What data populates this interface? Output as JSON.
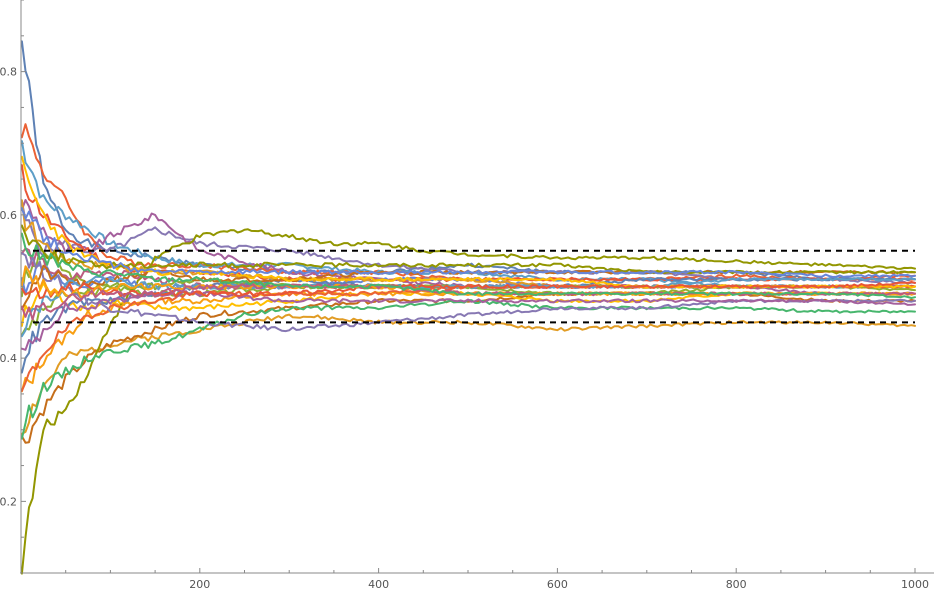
{
  "chart_data": {
    "type": "line",
    "title": "",
    "xlabel": "",
    "ylabel": "",
    "xlim": [
      0,
      1000
    ],
    "ylim": [
      0.1,
      0.9
    ],
    "grid": false,
    "legend": "none",
    "x_ticks": [
      {
        "value": 200,
        "label": "200"
      },
      {
        "value": 400,
        "label": "400"
      },
      {
        "value": 600,
        "label": "600"
      },
      {
        "value": 800,
        "label": "800"
      },
      {
        "value": 1000,
        "label": "1000"
      }
    ],
    "y_ticks": [
      {
        "value": 0.2,
        "label": "0.2"
      },
      {
        "value": 0.4,
        "label": "0.4"
      },
      {
        "value": 0.6,
        "label": "0.6"
      },
      {
        "value": 0.8,
        "label": "0.8"
      }
    ],
    "reference_lines": [
      {
        "y": 0.55,
        "color": "#000000",
        "style": "dashed"
      },
      {
        "y": 0.45,
        "color": "#000000",
        "style": "dashed"
      }
    ],
    "palette": [
      "#5E81B5",
      "#E19C24",
      "#8FB032",
      "#EB6235",
      "#8778B3",
      "#C56E1A",
      "#5D9EC7",
      "#FFBF00",
      "#A5609D",
      "#929600",
      "#E95536",
      "#6685D9",
      "#F89F13",
      "#BC5B80",
      "#47B66D"
    ],
    "series": [
      {
        "color": "#5E81B5",
        "x": [
          1,
          25,
          50,
          75,
          100,
          150,
          200,
          300,
          400,
          500,
          600,
          700,
          800,
          900,
          1000
        ],
        "y": [
          0.84,
          0.64,
          0.58,
          0.56,
          0.55,
          0.54,
          0.53,
          0.52,
          0.52,
          0.53,
          0.52,
          0.52,
          0.52,
          0.51,
          0.51
        ]
      },
      {
        "color": "#E19C24",
        "x": [
          1,
          25,
          50,
          75,
          100,
          150,
          200,
          300,
          400,
          500,
          600,
          700,
          800,
          900,
          1000
        ],
        "y": [
          0.3,
          0.36,
          0.4,
          0.41,
          0.42,
          0.43,
          0.44,
          0.46,
          0.45,
          0.45,
          0.44,
          0.445,
          0.45,
          0.45,
          0.445
        ]
      },
      {
        "color": "#8FB032",
        "x": [
          1,
          25,
          50,
          75,
          100,
          150,
          200,
          300,
          400,
          500,
          600,
          700,
          800,
          900,
          1000
        ],
        "y": [
          0.5,
          0.55,
          0.52,
          0.5,
          0.5,
          0.49,
          0.49,
          0.5,
          0.5,
          0.5,
          0.49,
          0.49,
          0.5,
          0.5,
          0.5
        ]
      },
      {
        "color": "#EB6235",
        "x": [
          1,
          25,
          50,
          75,
          100,
          150,
          200,
          300,
          400,
          500,
          600,
          700,
          800,
          900,
          1000
        ],
        "y": [
          0.73,
          0.66,
          0.62,
          0.57,
          0.54,
          0.53,
          0.53,
          0.52,
          0.52,
          0.51,
          0.51,
          0.51,
          0.515,
          0.51,
          0.51
        ]
      },
      {
        "color": "#8778B3",
        "x": [
          1,
          25,
          50,
          75,
          100,
          150,
          200,
          300,
          400,
          500,
          600,
          700,
          800,
          900,
          1000
        ],
        "y": [
          0.6,
          0.55,
          0.56,
          0.55,
          0.55,
          0.58,
          0.56,
          0.55,
          0.53,
          0.52,
          0.52,
          0.52,
          0.51,
          0.51,
          0.505
        ]
      },
      {
        "color": "#C56E1A",
        "x": [
          1,
          25,
          50,
          75,
          100,
          150,
          200,
          300,
          400,
          500,
          600,
          700,
          800,
          900,
          1000
        ],
        "y": [
          0.28,
          0.33,
          0.37,
          0.4,
          0.42,
          0.44,
          0.46,
          0.47,
          0.48,
          0.48,
          0.49,
          0.49,
          0.49,
          0.48,
          0.48
        ]
      },
      {
        "color": "#5D9EC7",
        "x": [
          1,
          25,
          50,
          75,
          100,
          150,
          200,
          300,
          400,
          500,
          600,
          700,
          800,
          900,
          1000
        ],
        "y": [
          0.7,
          0.62,
          0.6,
          0.58,
          0.56,
          0.54,
          0.53,
          0.53,
          0.52,
          0.52,
          0.51,
          0.51,
          0.5,
          0.5,
          0.5
        ]
      },
      {
        "color": "#FFBF00",
        "x": [
          1,
          25,
          50,
          75,
          100,
          150,
          200,
          300,
          400,
          500,
          600,
          700,
          800,
          900,
          1000
        ],
        "y": [
          0.45,
          0.5,
          0.48,
          0.47,
          0.48,
          0.47,
          0.47,
          0.48,
          0.49,
          0.49,
          0.48,
          0.48,
          0.49,
          0.49,
          0.49
        ]
      },
      {
        "color": "#A5609D",
        "x": [
          1,
          25,
          50,
          75,
          100,
          150,
          200,
          300,
          400,
          500,
          600,
          700,
          800,
          900,
          1000
        ],
        "y": [
          0.62,
          0.58,
          0.55,
          0.55,
          0.57,
          0.6,
          0.55,
          0.52,
          0.51,
          0.5,
          0.5,
          0.5,
          0.5,
          0.49,
          0.49
        ]
      },
      {
        "color": "#929600",
        "x": [
          1,
          25,
          50,
          75,
          100,
          150,
          200,
          250,
          300,
          350,
          400,
          450,
          500,
          600,
          700,
          800,
          900,
          1000
        ],
        "y": [
          0.12,
          0.3,
          0.33,
          0.38,
          0.45,
          0.54,
          0.57,
          0.58,
          0.57,
          0.56,
          0.56,
          0.55,
          0.545,
          0.54,
          0.54,
          0.535,
          0.53,
          0.525
        ]
      },
      {
        "color": "#E95536",
        "x": [
          1,
          25,
          50,
          75,
          100,
          150,
          200,
          300,
          400,
          500,
          600,
          700,
          800,
          900,
          1000
        ],
        "y": [
          0.65,
          0.6,
          0.57,
          0.55,
          0.53,
          0.52,
          0.52,
          0.51,
          0.51,
          0.51,
          0.51,
          0.51,
          0.51,
          0.51,
          0.515
        ]
      },
      {
        "color": "#6685D9",
        "x": [
          1,
          25,
          50,
          75,
          100,
          150,
          200,
          300,
          400,
          500,
          600,
          700,
          800,
          900,
          1000
        ],
        "y": [
          0.5,
          0.53,
          0.5,
          0.5,
          0.51,
          0.5,
          0.5,
          0.5,
          0.51,
          0.51,
          0.5,
          0.5,
          0.5,
          0.5,
          0.5
        ]
      },
      {
        "color": "#F89F13",
        "x": [
          1,
          25,
          50,
          75,
          100,
          150,
          200,
          300,
          400,
          500,
          600,
          700,
          800,
          900,
          1000
        ],
        "y": [
          0.35,
          0.4,
          0.43,
          0.46,
          0.47,
          0.48,
          0.48,
          0.49,
          0.49,
          0.49,
          0.49,
          0.49,
          0.49,
          0.49,
          0.49
        ]
      },
      {
        "color": "#BC5B80",
        "x": [
          1,
          25,
          50,
          75,
          100,
          150,
          200,
          300,
          400,
          500,
          600,
          700,
          800,
          900,
          1000
        ],
        "y": [
          0.55,
          0.53,
          0.51,
          0.52,
          0.52,
          0.51,
          0.5,
          0.5,
          0.5,
          0.5,
          0.5,
          0.5,
          0.5,
          0.5,
          0.5
        ]
      },
      {
        "color": "#47B66D",
        "x": [
          1,
          25,
          50,
          75,
          100,
          150,
          200,
          250,
          300,
          400,
          500,
          600,
          700,
          800,
          900,
          1000
        ],
        "y": [
          0.3,
          0.36,
          0.38,
          0.4,
          0.41,
          0.42,
          0.44,
          0.46,
          0.47,
          0.47,
          0.48,
          0.47,
          0.47,
          0.47,
          0.465,
          0.465
        ]
      },
      {
        "color": "#5E81B5",
        "x": [
          1,
          25,
          50,
          75,
          100,
          150,
          200,
          300,
          400,
          500,
          600,
          700,
          800,
          900,
          1000
        ],
        "y": [
          0.4,
          0.45,
          0.47,
          0.48,
          0.48,
          0.49,
          0.5,
          0.51,
          0.5,
          0.5,
          0.5,
          0.51,
          0.51,
          0.51,
          0.51
        ]
      },
      {
        "color": "#E19C24",
        "x": [
          1,
          25,
          50,
          75,
          100,
          150,
          200,
          300,
          400,
          500,
          600,
          700,
          800,
          900,
          1000
        ],
        "y": [
          0.6,
          0.56,
          0.54,
          0.53,
          0.53,
          0.52,
          0.52,
          0.51,
          0.51,
          0.51,
          0.5,
          0.5,
          0.5,
          0.5,
          0.5
        ]
      },
      {
        "color": "#8FB032",
        "x": [
          1,
          25,
          50,
          75,
          100,
          150,
          200,
          300,
          400,
          500,
          600,
          700,
          800,
          900,
          1000
        ],
        "y": [
          0.42,
          0.47,
          0.49,
          0.49,
          0.5,
          0.5,
          0.51,
          0.5,
          0.5,
          0.5,
          0.5,
          0.5,
          0.5,
          0.5,
          0.495
        ]
      },
      {
        "color": "#EB6235",
        "x": [
          1,
          25,
          50,
          75,
          100,
          150,
          200,
          300,
          400,
          500,
          600,
          700,
          800,
          900,
          1000
        ],
        "y": [
          0.35,
          0.41,
          0.44,
          0.46,
          0.47,
          0.48,
          0.49,
          0.49,
          0.49,
          0.5,
          0.5,
          0.5,
          0.5,
          0.5,
          0.5
        ]
      },
      {
        "color": "#8778B3",
        "x": [
          1,
          25,
          50,
          75,
          100,
          150,
          200,
          300,
          400,
          500,
          600,
          700,
          800,
          900,
          1000
        ],
        "y": [
          0.55,
          0.52,
          0.5,
          0.48,
          0.47,
          0.46,
          0.45,
          0.44,
          0.45,
          0.46,
          0.47,
          0.47,
          0.48,
          0.48,
          0.48
        ]
      },
      {
        "color": "#C56E1A",
        "x": [
          1,
          25,
          50,
          75,
          100,
          150,
          200,
          300,
          400,
          500,
          600,
          700,
          800,
          900,
          1000
        ],
        "y": [
          0.48,
          0.52,
          0.51,
          0.5,
          0.51,
          0.52,
          0.51,
          0.51,
          0.52,
          0.52,
          0.52,
          0.52,
          0.52,
          0.52,
          0.52
        ]
      },
      {
        "color": "#5D9EC7",
        "x": [
          1,
          25,
          50,
          75,
          100,
          150,
          200,
          300,
          400,
          500,
          600,
          700,
          800,
          900,
          1000
        ],
        "y": [
          0.45,
          0.48,
          0.5,
          0.51,
          0.51,
          0.5,
          0.5,
          0.5,
          0.5,
          0.5,
          0.5,
          0.5,
          0.51,
          0.51,
          0.51
        ]
      },
      {
        "color": "#FFBF00",
        "x": [
          1,
          25,
          50,
          75,
          100,
          150,
          200,
          300,
          400,
          500,
          600,
          700,
          800,
          900,
          1000
        ],
        "y": [
          0.66,
          0.6,
          0.56,
          0.54,
          0.53,
          0.52,
          0.52,
          0.51,
          0.51,
          0.51,
          0.51,
          0.5,
          0.5,
          0.5,
          0.5
        ]
      },
      {
        "color": "#A5609D",
        "x": [
          1,
          25,
          50,
          75,
          100,
          150,
          200,
          300,
          400,
          500,
          600,
          700,
          800,
          900,
          1000
        ],
        "y": [
          0.4,
          0.44,
          0.47,
          0.47,
          0.48,
          0.49,
          0.49,
          0.48,
          0.48,
          0.48,
          0.48,
          0.48,
          0.48,
          0.48,
          0.475
        ]
      },
      {
        "color": "#929600",
        "x": [
          1,
          25,
          50,
          75,
          100,
          150,
          200,
          300,
          400,
          500,
          600,
          700,
          800,
          900,
          1000
        ],
        "y": [
          0.58,
          0.55,
          0.54,
          0.53,
          0.53,
          0.53,
          0.53,
          0.53,
          0.53,
          0.53,
          0.53,
          0.52,
          0.52,
          0.52,
          0.52
        ]
      },
      {
        "color": "#E95536",
        "x": [
          1,
          25,
          50,
          75,
          100,
          150,
          200,
          300,
          400,
          500,
          600,
          700,
          800,
          900,
          1000
        ],
        "y": [
          0.5,
          0.49,
          0.5,
          0.5,
          0.49,
          0.49,
          0.49,
          0.49,
          0.5,
          0.5,
          0.5,
          0.5,
          0.5,
          0.5,
          0.505
        ]
      },
      {
        "color": "#6685D9",
        "x": [
          1,
          25,
          50,
          75,
          100,
          150,
          200,
          300,
          400,
          500,
          600,
          700,
          800,
          900,
          1000
        ],
        "y": [
          0.62,
          0.57,
          0.55,
          0.54,
          0.53,
          0.52,
          0.52,
          0.52,
          0.52,
          0.52,
          0.52,
          0.52,
          0.52,
          0.515,
          0.515
        ]
      },
      {
        "color": "#F89F13",
        "x": [
          1,
          25,
          50,
          75,
          100,
          150,
          200,
          300,
          400,
          500,
          600,
          700,
          800,
          900,
          1000
        ],
        "y": [
          0.52,
          0.5,
          0.49,
          0.49,
          0.5,
          0.5,
          0.5,
          0.5,
          0.5,
          0.49,
          0.49,
          0.49,
          0.49,
          0.49,
          0.49
        ]
      },
      {
        "color": "#BC5B80",
        "x": [
          1,
          25,
          50,
          75,
          100,
          150,
          200,
          300,
          400,
          500,
          600,
          700,
          800,
          900,
          1000
        ],
        "y": [
          0.45,
          0.47,
          0.48,
          0.49,
          0.49,
          0.49,
          0.5,
          0.5,
          0.5,
          0.49,
          0.49,
          0.49,
          0.49,
          0.49,
          0.49
        ]
      },
      {
        "color": "#47B66D",
        "x": [
          1,
          25,
          50,
          75,
          100,
          150,
          200,
          300,
          400,
          500,
          600,
          700,
          800,
          900,
          1000
        ],
        "y": [
          0.56,
          0.54,
          0.53,
          0.52,
          0.52,
          0.51,
          0.51,
          0.5,
          0.5,
          0.49,
          0.49,
          0.49,
          0.49,
          0.49,
          0.485
        ]
      }
    ]
  }
}
